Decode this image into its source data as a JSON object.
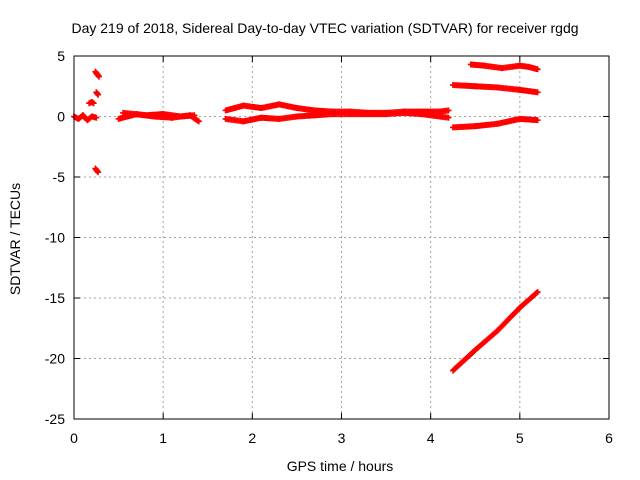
{
  "chart_data": {
    "type": "scatter",
    "title": "Day 219 of 2018, Sidereal Day-to-day VTEC variation (SDTVAR) for receiver rgdg",
    "xlabel": "GPS time / hours",
    "ylabel": "SDTVAR / TECUs",
    "xlim": [
      0,
      6
    ],
    "ylim": [
      -25,
      5
    ],
    "xticks": [
      0,
      1,
      2,
      3,
      4,
      5,
      6
    ],
    "yticks": [
      5,
      0,
      -5,
      -10,
      -15,
      -20,
      -25
    ],
    "grid": true,
    "marker": "plus",
    "color": "#ff0000",
    "segments": [
      {
        "x": [
          0.0,
          0.05,
          0.1,
          0.15,
          0.2,
          0.25
        ],
        "y": [
          0.0,
          -0.2,
          0.1,
          -0.3,
          0.0,
          -0.1
        ]
      },
      {
        "x": [
          0.17,
          0.2,
          0.22
        ],
        "y": [
          1.1,
          1.2,
          1.1
        ]
      },
      {
        "x": [
          0.24,
          0.26,
          0.28
        ],
        "y": [
          3.7,
          3.5,
          3.3
        ]
      },
      {
        "x": [
          0.25,
          0.27
        ],
        "y": [
          2.0,
          1.8
        ]
      },
      {
        "x": [
          0.24,
          0.27
        ],
        "y": [
          -4.3,
          -4.6
        ]
      },
      {
        "x": [
          0.5,
          0.7,
          0.9,
          1.1,
          1.3,
          1.4
        ],
        "y": [
          -0.2,
          0.2,
          0.0,
          -0.1,
          0.1,
          -0.4
        ]
      },
      {
        "x": [
          0.55,
          0.8,
          1.0,
          1.2,
          1.35
        ],
        "y": [
          0.3,
          0.1,
          0.2,
          0.0,
          0.1
        ]
      },
      {
        "x": [
          1.7,
          1.9,
          2.1,
          2.3,
          2.5,
          2.7,
          2.9,
          3.1,
          3.3,
          3.5,
          3.7,
          3.9,
          4.1,
          4.2
        ],
        "y": [
          0.5,
          0.9,
          0.7,
          1.0,
          0.7,
          0.5,
          0.4,
          0.4,
          0.3,
          0.3,
          0.4,
          0.4,
          0.4,
          0.5
        ]
      },
      {
        "x": [
          1.7,
          1.9,
          2.1,
          2.3,
          2.5,
          2.7,
          2.9,
          3.1,
          3.3,
          3.5,
          3.7,
          3.9,
          4.1,
          4.2
        ],
        "y": [
          -0.2,
          -0.4,
          -0.1,
          -0.2,
          0.0,
          0.1,
          0.2,
          0.2,
          0.2,
          0.2,
          0.3,
          0.2,
          0.0,
          -0.1
        ]
      },
      {
        "x": [
          4.45,
          4.6,
          4.8,
          5.0,
          5.1,
          5.2
        ],
        "y": [
          4.3,
          4.2,
          4.0,
          4.2,
          4.1,
          3.9
        ]
      },
      {
        "x": [
          4.25,
          4.5,
          4.75,
          5.0,
          5.2
        ],
        "y": [
          2.6,
          2.5,
          2.4,
          2.2,
          2.0
        ]
      },
      {
        "x": [
          4.25,
          4.5,
          4.75,
          5.0,
          5.2
        ],
        "y": [
          -0.9,
          -0.8,
          -0.6,
          -0.2,
          -0.3
        ]
      },
      {
        "x": [
          4.25,
          4.5,
          4.75,
          5.0,
          5.2
        ],
        "y": [
          -21.0,
          -19.3,
          -17.7,
          -15.8,
          -14.5
        ]
      }
    ]
  }
}
